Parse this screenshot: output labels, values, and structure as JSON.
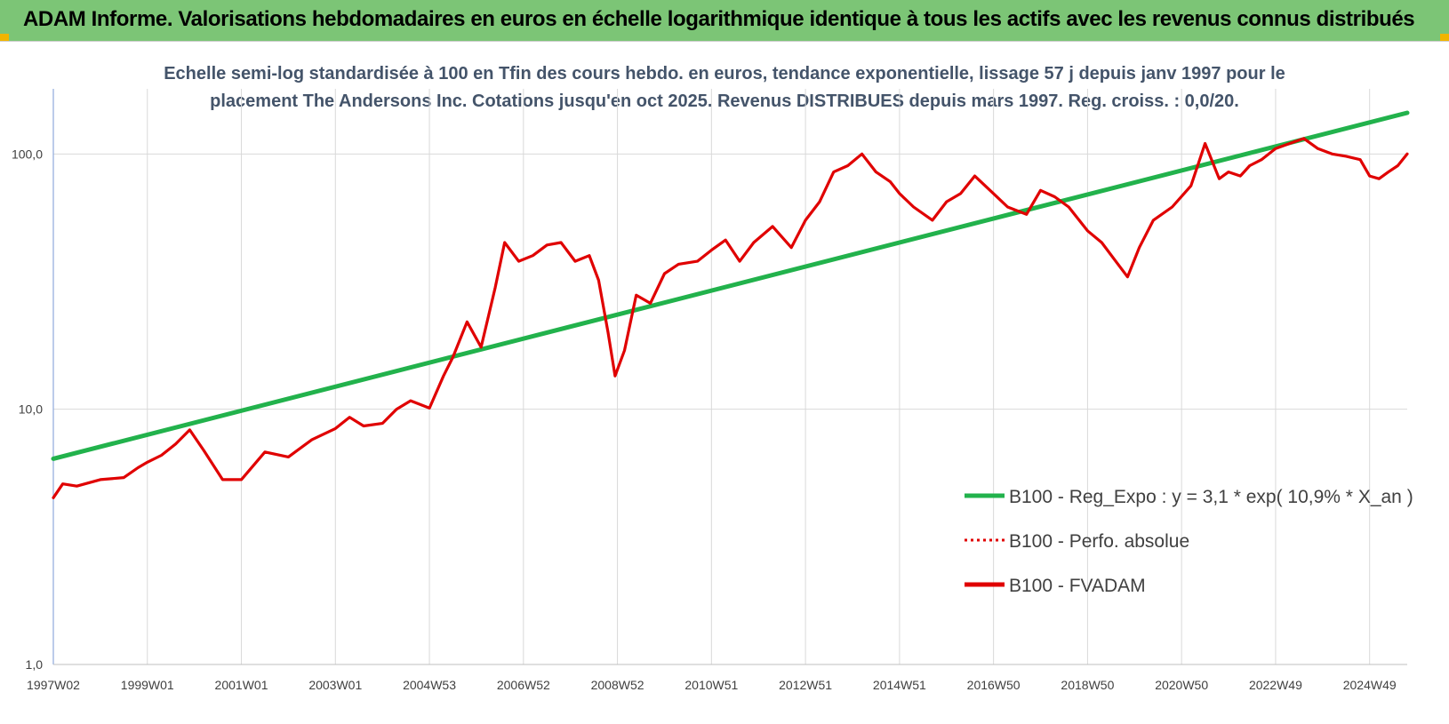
{
  "header": {
    "title": "ADAM Informe. Valorisations hebdomadaires en euros en échelle logarithmique identique à tous les actifs avec les revenus connus distribués"
  },
  "colors": {
    "header_bg": "#7cc576",
    "corner_accent": "#f1b400",
    "regression": "#22b24c",
    "fvadam": "#e00000",
    "perfo": "#e00000",
    "title_text": "#44546a"
  },
  "chart_data": {
    "type": "line",
    "title_line1": "Echelle semi-log standardisée à 100 en Tfin des cours hebdo. en euros, tendance exponentielle, lissage 57 j depuis janv 1997 pour le",
    "title_line2": "placement The Andersons Inc. Cotations jusqu'en oct 2025. Revenus DISTRIBUES depuis mars 1997. Reg. croiss. : 0,0/20.",
    "y_scale": "log",
    "ylim": [
      1,
      180
    ],
    "y_ticks": [
      1,
      10,
      100
    ],
    "y_tick_labels": [
      "1,0",
      "10,0",
      "100,0"
    ],
    "x_range": [
      1997.0,
      2025.8
    ],
    "x_tick_labels": [
      "1997W02",
      "1999W01",
      "2001W01",
      "2003W01",
      "2004W53",
      "2006W52",
      "2008W52",
      "2010W51",
      "2012W51",
      "2014W51",
      "2016W50",
      "2018W50",
      "2020W50",
      "2022W49",
      "2024W49"
    ],
    "x_tick_positions": [
      1997.0,
      1999.0,
      2001.0,
      2003.0,
      2005.0,
      2007.0,
      2009.0,
      2011.0,
      2013.0,
      2015.0,
      2017.0,
      2019.0,
      2021.0,
      2023.0,
      2025.0
    ],
    "grid": true,
    "legend_position": "right-middle",
    "series": [
      {
        "name": "B100 - Reg_Expo : y = 3,1 * exp( 10,9% *  X_an )",
        "style": "solid",
        "x": [
          1997.0,
          2025.8
        ],
        "y": [
          6.4,
          145.0
        ]
      },
      {
        "name": "B100 - Perfo. absolue",
        "style": "dotted",
        "x": [],
        "y": []
      },
      {
        "name": "B100 - FVADAM",
        "style": "solid",
        "x": [
          1997.0,
          1997.2,
          1997.5,
          1998.0,
          1998.5,
          1998.8,
          1999.0,
          1999.3,
          1999.6,
          1999.9,
          2000.2,
          2000.6,
          2001.0,
          2001.5,
          2002.0,
          2002.5,
          2003.0,
          2003.3,
          2003.6,
          2004.0,
          2004.3,
          2004.6,
          2005.0,
          2005.3,
          2005.5,
          2005.8,
          2006.1,
          2006.4,
          2006.6,
          2006.9,
          2007.2,
          2007.5,
          2007.8,
          2008.1,
          2008.4,
          2008.6,
          2008.8,
          2008.95,
          2009.15,
          2009.4,
          2009.7,
          2010.0,
          2010.3,
          2010.7,
          2011.0,
          2011.3,
          2011.6,
          2011.9,
          2012.3,
          2012.7,
          2013.0,
          2013.3,
          2013.6,
          2013.9,
          2014.2,
          2014.5,
          2014.8,
          2015.0,
          2015.3,
          2015.7,
          2016.0,
          2016.3,
          2016.6,
          2017.0,
          2017.3,
          2017.7,
          2018.0,
          2018.3,
          2018.6,
          2019.0,
          2019.3,
          2019.6,
          2019.85,
          2020.1,
          2020.4,
          2020.8,
          2021.2,
          2021.5,
          2021.8,
          2022.0,
          2022.25,
          2022.45,
          2022.7,
          2023.0,
          2023.3,
          2023.6,
          2023.9,
          2024.2,
          2024.5,
          2024.8,
          2025.0,
          2025.2,
          2025.4,
          2025.6,
          2025.8
        ],
        "y": [
          4.5,
          5.1,
          5.0,
          5.3,
          5.4,
          5.9,
          6.2,
          6.6,
          7.3,
          8.3,
          6.9,
          5.3,
          5.3,
          6.8,
          6.5,
          7.6,
          8.4,
          9.3,
          8.6,
          8.8,
          10.0,
          10.8,
          10.1,
          13.5,
          16.0,
          22.0,
          17.5,
          30.0,
          45.0,
          38.0,
          40.0,
          44.0,
          45.0,
          38.0,
          40.0,
          32.0,
          20.0,
          13.5,
          17.0,
          28.0,
          26.0,
          34.0,
          37.0,
          38.0,
          42.0,
          46.0,
          38.0,
          45.0,
          52.0,
          43.0,
          55.0,
          65.0,
          85.0,
          90.0,
          100.0,
          85.0,
          78.0,
          70.0,
          62.0,
          55.0,
          65.0,
          70.0,
          82.0,
          70.0,
          62.0,
          58.0,
          72.0,
          68.0,
          62.0,
          50.0,
          45.0,
          38.0,
          33.0,
          43.0,
          55.0,
          62.0,
          75.0,
          110.0,
          80.0,
          85.0,
          82.0,
          90.0,
          95.0,
          105.0,
          110.0,
          115.0,
          105.0,
          100.0,
          98.0,
          95.0,
          82.0,
          80.0,
          85.0,
          90.0,
          100.0
        ]
      }
    ]
  }
}
